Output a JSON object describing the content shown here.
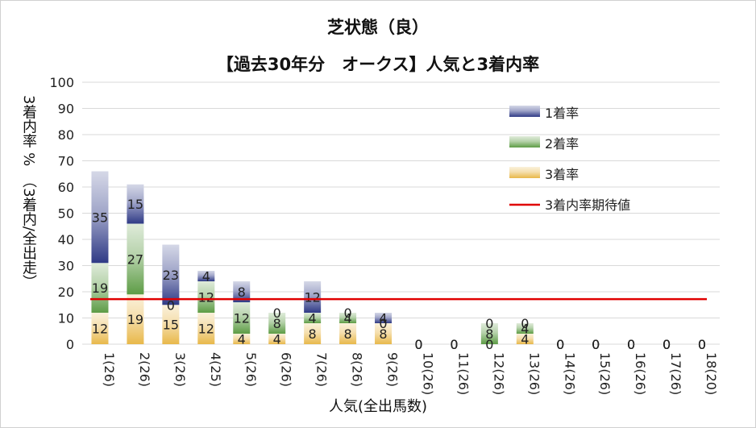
{
  "chart_data": {
    "type": "bar",
    "stacked": true,
    "title": "芝状態（良）",
    "subtitle": "【過去30年分　オークス】人気と3着内率",
    "xlabel": "人気(全出馬数)",
    "ylabel": "3着内率 %　（3着内/全出走）",
    "ylim": [
      0,
      100
    ],
    "yticks": [
      0,
      10,
      20,
      30,
      40,
      50,
      60,
      70,
      80,
      90,
      100
    ],
    "categories": [
      "1(26)",
      "2(26)",
      "3(26)",
      "4(25)",
      "5(26)",
      "6(26)",
      "7(26)",
      "8(26)",
      "9(26)",
      "10(26)",
      "11(26)",
      "12(26)",
      "13(26)",
      "14(26)",
      "15(26)",
      "16(26)",
      "17(26)",
      "18(20)"
    ],
    "series": [
      {
        "name": "3着率",
        "color": "#e8b84a",
        "values": [
          12,
          19,
          15,
          12,
          4,
          4,
          8,
          8,
          8,
          0,
          0,
          0,
          4,
          0,
          0,
          0,
          0,
          0
        ]
      },
      {
        "name": "2着率",
        "color": "#5d9c45",
        "values": [
          19,
          27,
          0,
          12,
          12,
          8,
          4,
          4,
          0,
          0,
          0,
          8,
          4,
          0,
          0,
          0,
          0,
          0
        ]
      },
      {
        "name": "1着率",
        "color": "#2f3a86",
        "values": [
          35,
          15,
          23,
          4,
          8,
          0,
          12,
          0,
          4,
          0,
          0,
          0,
          0,
          0,
          0,
          0,
          0,
          0
        ]
      }
    ],
    "series_labels": [
      "1着率",
      "2着率",
      "3着率",
      "3着内率期待値"
    ],
    "expected_line": {
      "name": "3着内率期待値",
      "value": 17.2,
      "color": "#e00000"
    },
    "grid": true,
    "legend": "top-right"
  }
}
